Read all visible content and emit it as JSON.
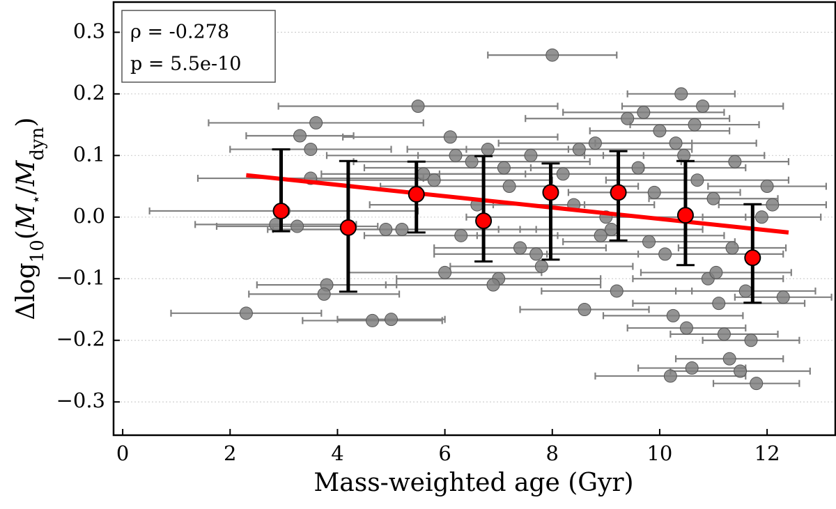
{
  "chart_data": {
    "type": "scatter",
    "xlabel": "Mass-weighted age (Gyr)",
    "ylabel_parts": [
      "Δlog",
      "10",
      "(",
      "M",
      "⋆",
      "/",
      "M",
      "dyn",
      ")"
    ],
    "annotations": [
      "ρ = -0.278",
      "p = 5.5e-10"
    ],
    "xlim": [
      -0.17,
      13.27
    ],
    "ylim": [
      -0.354,
      0.349
    ],
    "xticks": [
      0,
      2,
      4,
      6,
      8,
      10,
      12
    ],
    "yticks": [
      {
        "value": -0.3,
        "label": "−0.3"
      },
      {
        "value": -0.2,
        "label": "−0.2"
      },
      {
        "value": -0.1,
        "label": "−0.1"
      },
      {
        "value": 0,
        "label": "0.0"
      },
      0.1,
      0.2,
      0.3
    ],
    "grid": true,
    "series": [
      {
        "color": "#808080",
        "x": [
          8.0,
          5.5,
          2.3,
          4.65,
          5.0,
          3.8,
          3.75,
          3.6,
          3.3,
          3.5,
          3.5,
          3.0,
          2.85,
          3.25,
          10.4,
          10.8,
          10.2,
          11.8,
          10.6,
          11.3,
          11.5,
          11.2,
          12.3,
          12.0,
          12.1,
          6.1,
          6.3,
          6.5,
          6.8,
          7.0,
          7.2,
          7.4,
          7.6,
          7.8,
          8.2,
          8.4,
          8.6,
          8.8,
          9.0,
          9.2,
          9.4,
          9.6,
          9.8,
          10.0,
          10.1,
          10.3,
          10.5,
          10.7,
          10.9,
          11.0,
          11.1,
          11.4,
          11.6,
          11.7,
          11.9,
          5.2,
          5.8,
          6.0,
          6.6,
          7.1,
          7.7,
          8.5,
          9.1,
          9.7,
          10.25,
          10.65,
          11.05,
          11.35,
          9.9,
          8.9,
          6.9,
          6.2,
          4.9,
          5.6,
          10.45
        ],
        "values": [
          0.263,
          0.18,
          -0.156,
          -0.168,
          -0.166,
          -0.11,
          -0.125,
          0.153,
          0.132,
          0.11,
          0.063,
          0.01,
          -0.012,
          -0.015,
          0.2,
          0.18,
          -0.258,
          -0.27,
          -0.245,
          -0.23,
          -0.25,
          -0.19,
          -0.13,
          0.05,
          0.02,
          0.13,
          -0.03,
          0.09,
          0.11,
          -0.1,
          0.05,
          -0.05,
          0.1,
          -0.08,
          0.07,
          0.02,
          -0.15,
          0.12,
          0.0,
          -0.12,
          0.16,
          0.08,
          -0.04,
          0.14,
          -0.06,
          0.12,
          -0.18,
          0.06,
          -0.1,
          0.03,
          -0.14,
          0.09,
          -0.12,
          -0.2,
          0.0,
          -0.02,
          0.06,
          -0.09,
          0.02,
          0.08,
          -0.06,
          0.11,
          -0.02,
          0.17,
          -0.16,
          0.15,
          -0.09,
          -0.05,
          0.04,
          -0.03,
          -0.11,
          0.1,
          -0.02,
          0.07,
          0.1
        ],
        "xerr": [
          1.2,
          2.6,
          1.4,
          1.3,
          1.0,
          1.3,
          1.4,
          2.0,
          1.0,
          1.5,
          2.1,
          2.5,
          1.5,
          1.5,
          1.0,
          1.5,
          1.4,
          0.8,
          1.0,
          1.0,
          1.3,
          1.0,
          0.9,
          1.1,
          1.0,
          2.0,
          1.8,
          2.2,
          1.5,
          1.9,
          2.4,
          1.6,
          2.1,
          1.7,
          2.3,
          1.5,
          1.2,
          1.8,
          2.6,
          1.4,
          1.9,
          2.0,
          1.6,
          1.3,
          2.2,
          1.5,
          1.1,
          1.7,
          1.4,
          1.2,
          1.6,
          1.0,
          1.3,
          0.9,
          1.1,
          2.5,
          2.2,
          1.8,
          2.0,
          2.6,
          1.9,
          2.1,
          1.7,
          1.5,
          1.3,
          1.2,
          1.4,
          1.0,
          1.6,
          2.3,
          2.0,
          2.4,
          2.1,
          1.9,
          1.5
        ]
      }
    ],
    "binned": {
      "color": "#ff0000",
      "x": [
        2.95,
        4.2,
        5.47,
        6.72,
        7.97,
        9.23,
        10.48,
        11.73
      ],
      "values": [
        0.01,
        -0.017,
        0.037,
        -0.006,
        0.04,
        0.04,
        0.003,
        -0.066
      ],
      "errors_minus": [
        0.033,
        0.104,
        0.062,
        0.066,
        0.109,
        0.078,
        0.081,
        0.073
      ],
      "errors_plus": [
        0.1,
        0.108,
        0.053,
        0.105,
        0.047,
        0.067,
        0.088,
        0.087
      ]
    },
    "fit": {
      "color": "#ff0000",
      "x": [
        2.3,
        12.4
      ],
      "values": [
        0.068,
        -0.025
      ]
    }
  }
}
